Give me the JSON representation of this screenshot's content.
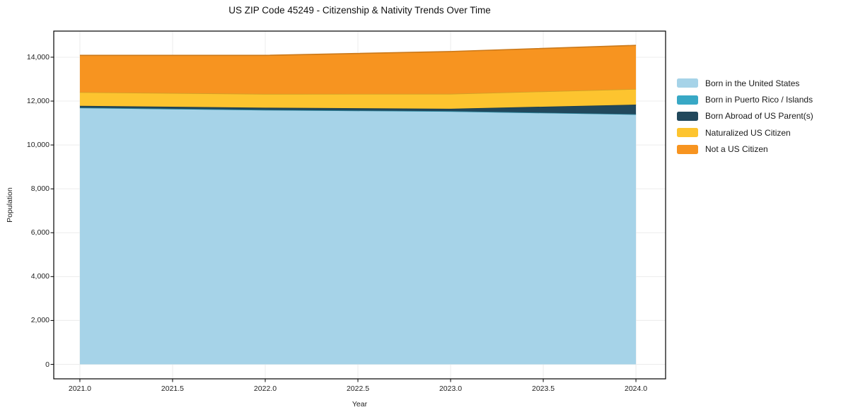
{
  "title": "US ZIP Code 45249 - Citizenship & Nativity Trends Over Time",
  "axes": {
    "x_label": "Year",
    "y_label": "Population",
    "x_ticks": [
      "2021.0",
      "2021.5",
      "2022.0",
      "2022.5",
      "2023.0",
      "2023.5",
      "2024.0"
    ],
    "y_ticks": [
      "0",
      "2,000",
      "4,000",
      "6,000",
      "8,000",
      "10,000",
      "12,000",
      "14,000"
    ]
  },
  "legend": [
    {
      "label": "Born in the United States",
      "color": "#a6d3e8"
    },
    {
      "label": "Born in Puerto Rico / Islands",
      "color": "#38a8c5"
    },
    {
      "label": "Born Abroad of US Parent(s)",
      "color": "#21485c"
    },
    {
      "label": "Naturalized US Citizen",
      "color": "#fdc42f"
    },
    {
      "label": "Not a US Citizen",
      "color": "#f79420"
    }
  ],
  "chart_data": {
    "type": "area",
    "stacked": true,
    "title": "US ZIP Code 45249 - Citizenship & Nativity Trends Over Time",
    "xlabel": "Year",
    "ylabel": "Population",
    "x": [
      2021,
      2022,
      2023,
      2024
    ],
    "series": [
      {
        "name": "Born in the United States",
        "color": "#a6d3e8",
        "values": [
          11700,
          11600,
          11540,
          11400
        ]
      },
      {
        "name": "Born in Puerto Rico / Islands",
        "color": "#38a8c5",
        "values": [
          0,
          0,
          0,
          0
        ]
      },
      {
        "name": "Born Abroad of US Parent(s)",
        "color": "#21485c",
        "values": [
          85,
          100,
          110,
          440
        ]
      },
      {
        "name": "Naturalized US Citizen",
        "color": "#fdc42f",
        "values": [
          620,
          625,
          680,
          710
        ]
      },
      {
        "name": "Not a US Citizen",
        "color": "#f79420",
        "values": [
          1680,
          1760,
          1930,
          1990
        ]
      }
    ],
    "stack_totals": [
      14085,
      14085,
      14260,
      14540
    ],
    "xlim": [
      2020.859,
      2024.16
    ],
    "ylim": [
      -660,
      15190
    ],
    "x_tick_values": [
      2021.0,
      2021.5,
      2022.0,
      2022.5,
      2023.0,
      2023.5,
      2024.0
    ],
    "y_tick_values": [
      0,
      2000,
      4000,
      6000,
      8000,
      10000,
      12000,
      14000
    ],
    "grid": true,
    "grid_color": "#ececec",
    "legend_position": "right-outside",
    "baseline": 0
  }
}
